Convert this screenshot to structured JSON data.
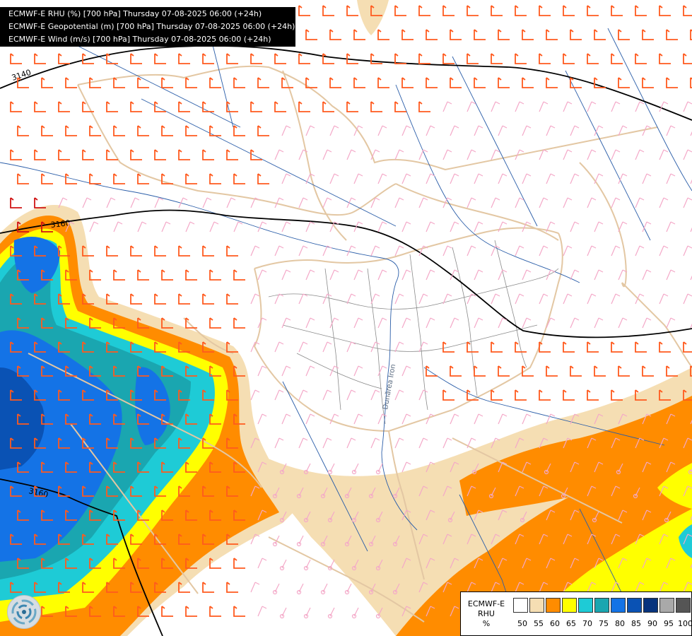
{
  "header": {
    "line1": "ECMWF-E RHU (%) [700 hPa] Thursday 07-08-2025 06:00 (+24h)",
    "line2": "ECMWF-E Geopotential (m) [700 hPa] Thursday 07-08-2025 06:00 (+24h)",
    "line3": "ECMWF-E Wind (m/s) [700 hPa] Thursday 07-08-2025 06:00 (+24h)"
  },
  "contours": {
    "label_top": "3140",
    "label_mid": "3160",
    "label_bottom": "3160"
  },
  "river_label": "Dunărea Iron",
  "legend": {
    "title_line1": "ECMWF-E",
    "title_line2": "RHU",
    "unit": "%",
    "levels": [
      {
        "value": "50",
        "color": "#ffffff"
      },
      {
        "value": "55",
        "color": "#f5deb3"
      },
      {
        "value": "60",
        "color": "#ff8c00"
      },
      {
        "value": "65",
        "color": "#ffff00"
      },
      {
        "value": "70",
        "color": "#1ecbd6"
      },
      {
        "value": "75",
        "color": "#1aa6b0"
      },
      {
        "value": "80",
        "color": "#1473e6"
      },
      {
        "value": "85",
        "color": "#0a52b4"
      },
      {
        "value": "90",
        "color": "#07337d"
      },
      {
        "value": "95",
        "color": "#a9a9a9"
      },
      {
        "value": "100",
        "color": "#555555"
      }
    ]
  },
  "colors": {
    "wind_strong": "#ff5a1e",
    "wind_weak": "#f4a8c8",
    "wind_max": "#d01414",
    "border": "#e3c7a3",
    "river": "#2a5da8",
    "geopotential": "#000000"
  },
  "logo": {
    "icon": "ecmwf-logo-icon"
  }
}
